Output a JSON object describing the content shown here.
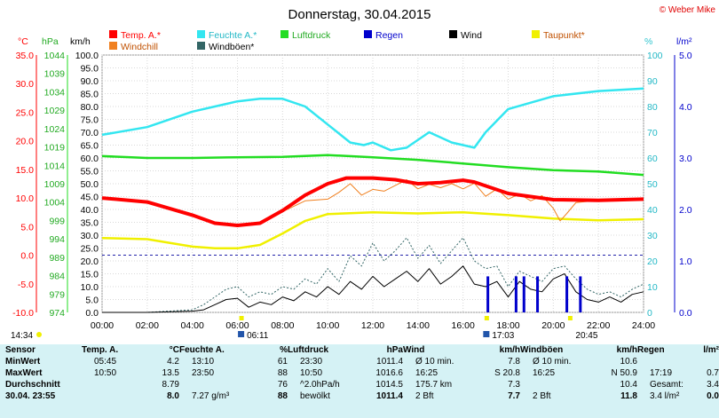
{
  "title": "Donnerstag, 30.04.2015",
  "copyright": "© Weber Mike",
  "legend": [
    {
      "label": "Temp. A.*",
      "color": "#ff0000"
    },
    {
      "label": "Feuchte A.*",
      "color": "#33e6f0"
    },
    {
      "label": "Luftdruck",
      "color": "#22dd22"
    },
    {
      "label": "Regen",
      "color": "#0000cc"
    },
    {
      "label": "Wind",
      "color": "#000000"
    },
    {
      "label": "Taupunkt*",
      "color": "#f0f000"
    },
    {
      "label": "Windchill",
      "color": "#f08020"
    },
    {
      "label": "Windböen*",
      "color": "#336666"
    }
  ],
  "axis_units": {
    "temp": "°C",
    "press": "hPa",
    "wind": "km/h",
    "hum": "%",
    "rain": "l/m²"
  },
  "events": {
    "sunrise_left": "14:34",
    "sunrise": "06:11",
    "moon": "17:03",
    "sunset": "20:45"
  },
  "chart_data": {
    "type": "line",
    "x_label_ticks": [
      "00:00",
      "02:00",
      "04:00",
      "06:00",
      "08:00",
      "10:00",
      "12:00",
      "14:00",
      "16:00",
      "18:00",
      "20:00",
      "22:00",
      "24:00"
    ],
    "temp_axis": {
      "unit": "°C",
      "range": [
        -10,
        35
      ],
      "ticks": [
        35,
        30,
        25,
        20,
        15,
        10,
        5,
        0,
        -5,
        -10
      ],
      "labels": [
        "35.0",
        "30.0",
        "25.0",
        "20.0",
        "15.0",
        "10.0",
        "5.0",
        "0.0",
        "-5.0",
        "-10.0"
      ]
    },
    "pressure_axis": {
      "unit": "hPa",
      "range": [
        974,
        1044
      ],
      "ticks": [
        1044,
        1039,
        1034,
        1029,
        1024,
        1019,
        1014,
        1009,
        1004,
        999,
        994,
        989,
        984,
        979,
        974
      ]
    },
    "wind_axis": {
      "unit": "km/h",
      "range": [
        0,
        100
      ],
      "labels": [
        "100.0",
        "95.0",
        "90.0",
        "85.0",
        "80.0",
        "75.0",
        "70.0",
        "65.0",
        "60.0",
        "55.0",
        "50.0",
        "45.0",
        "40.0",
        "35.0",
        "30.0",
        "25.0",
        "20.0",
        "15.0",
        "10.0",
        "5.0",
        "0.0"
      ]
    },
    "humidity_axis": {
      "unit": "%",
      "range": [
        0,
        100
      ],
      "ticks": [
        100,
        90,
        80,
        70,
        60,
        50,
        40,
        30,
        20,
        10,
        0
      ]
    },
    "rain_axis": {
      "unit": "l/m²",
      "range": [
        0,
        5
      ],
      "labels": [
        "5.0",
        "4.0",
        "3.0",
        "2.0",
        "1.0",
        "0.0"
      ]
    },
    "series": [
      {
        "name": "Temp. A.*",
        "axis": "temp",
        "x": [
          0,
          2,
          4,
          5,
          6,
          7,
          8,
          9,
          10,
          10.83,
          12,
          13,
          14,
          15,
          16,
          16.5,
          18,
          20,
          22,
          24
        ],
        "y": [
          10,
          9.3,
          7,
          5.6,
          5.2,
          5.6,
          7.8,
          10.5,
          12.5,
          13.5,
          13.5,
          13.2,
          12.5,
          12.7,
          13.1,
          12.8,
          10.8,
          9.7,
          9.6,
          9.8
        ]
      },
      {
        "name": "Windchill",
        "axis": "temp",
        "x": [
          0,
          2,
          4,
          5,
          6,
          7,
          8,
          9,
          10,
          10.5,
          11,
          11.5,
          12,
          12.5,
          13,
          13.5,
          14,
          14.5,
          15,
          15.5,
          16,
          16.5,
          17,
          17.5,
          18,
          18.5,
          19,
          19.5,
          20,
          20.3,
          20.6,
          21,
          22,
          24
        ],
        "y": [
          10,
          9.3,
          7,
          5.6,
          5.2,
          5.6,
          7.6,
          9.5,
          9.8,
          11,
          12.5,
          10.5,
          11.5,
          11.2,
          12.2,
          13.2,
          11.6,
          12.4,
          11.8,
          12.5,
          11.6,
          12.6,
          10.3,
          11.6,
          9.8,
          10.7,
          9.5,
          10.4,
          8.2,
          6,
          7.3,
          9.2,
          9.6,
          9.8
        ]
      },
      {
        "name": "Taupunkt*",
        "axis": "temp",
        "x": [
          0,
          2,
          4,
          5,
          6,
          7,
          8,
          9,
          10,
          12,
          14,
          16,
          18,
          20,
          22,
          24
        ],
        "y": [
          3,
          2.8,
          1.5,
          1.2,
          1.2,
          1.8,
          3.8,
          6,
          7.2,
          7.5,
          7.3,
          7.5,
          7,
          6.4,
          6.1,
          6.3
        ]
      },
      {
        "name": "Feuchte A.*",
        "axis": "humidity",
        "x": [
          0,
          2,
          4,
          5,
          6,
          7,
          8,
          9,
          10,
          11,
          11.6,
          12,
          12.8,
          13.5,
          14.5,
          15.5,
          16,
          16.5,
          17,
          18,
          20,
          22,
          24
        ],
        "y": [
          69,
          72,
          78,
          80,
          82,
          83,
          83,
          80,
          73,
          66,
          65,
          66,
          63,
          64,
          70,
          66,
          65,
          64,
          70,
          79,
          84,
          86,
          87
        ]
      },
      {
        "name": "Luftdruck",
        "axis": "pressure",
        "x": [
          0,
          2,
          4,
          6,
          8,
          10,
          12,
          14,
          16,
          18,
          20,
          22,
          24
        ],
        "y": [
          1016.5,
          1016,
          1016,
          1016.2,
          1016.3,
          1016.8,
          1016.2,
          1015.5,
          1014.5,
          1013.5,
          1012.7,
          1012.3,
          1011.4
        ]
      },
      {
        "name": "Wind",
        "axis": "wind",
        "x": [
          0,
          2,
          4,
          4.5,
          5,
          5.5,
          6,
          6.5,
          7,
          7.5,
          8,
          8.5,
          9,
          9.5,
          10,
          10.5,
          11,
          11.5,
          12,
          12.5,
          13,
          13.5,
          14,
          14.5,
          15,
          15.5,
          16,
          16.5,
          17,
          17.5,
          18,
          18.5,
          19,
          19.5,
          20,
          20.5,
          21,
          21.5,
          22,
          22.5,
          23,
          23.5,
          24
        ],
        "y": [
          0,
          0,
          0.5,
          1,
          3,
          5,
          5.5,
          2,
          4,
          3,
          6,
          4.5,
          8,
          6,
          10,
          7,
          12,
          9,
          14,
          10,
          13,
          16,
          12,
          17,
          11,
          14,
          18,
          11,
          10,
          12,
          6,
          12,
          9,
          8,
          13,
          15,
          8,
          5,
          4,
          6,
          4,
          7,
          8
        ]
      },
      {
        "name": "Windböen*",
        "axis": "wind",
        "x": [
          0,
          2,
          4,
          4.5,
          5,
          5.5,
          6,
          6.5,
          7,
          7.5,
          8,
          8.5,
          9,
          9.5,
          10,
          10.5,
          11,
          11.5,
          12,
          12.5,
          13,
          13.5,
          14,
          14.5,
          15,
          15.5,
          16,
          16.5,
          17,
          17.5,
          18,
          18.5,
          19,
          19.5,
          20,
          20.5,
          21,
          21.5,
          22,
          22.5,
          23,
          23.5,
          24
        ],
        "y": [
          0,
          0,
          1,
          3,
          6,
          9,
          10,
          6,
          8,
          7,
          10,
          9,
          13,
          11,
          17,
          12,
          22,
          18,
          27,
          20,
          24,
          29,
          21,
          26,
          19,
          24,
          29,
          20,
          17,
          18,
          10,
          16,
          14,
          12,
          17,
          18,
          13,
          9,
          7,
          8,
          6,
          9,
          11
        ]
      },
      {
        "name": "Regen",
        "axis": "rain",
        "type": "bar",
        "x": [
          17.1,
          18.35,
          18.7,
          19.3,
          20.6,
          21.2
        ],
        "y": [
          0.7,
          0.7,
          0.7,
          0.7,
          0.7,
          0.7
        ]
      }
    ]
  },
  "stats": {
    "header": [
      "Sensor",
      "Temp. A.",
      "°C",
      "Feuchte A.",
      "%",
      "Luftdruck",
      "hPa",
      "Wind",
      "km/h",
      "Windböen",
      "km/h",
      "Regen",
      "l/m²"
    ],
    "rows": [
      {
        "label": "MinWert",
        "cells": [
          "05:45",
          "4.2",
          "13:10",
          "61",
          "23:30",
          "1011.4",
          "Ø 10 min.",
          "7.8",
          "Ø 10 min.",
          "10.6",
          "",
          ""
        ]
      },
      {
        "label": "MaxWert",
        "cells": [
          "10:50",
          "13.5",
          "23:50",
          "88",
          "10:50",
          "1016.6",
          "16:25",
          "S 20.8",
          "16:25",
          "N 50.9",
          "17:19",
          "0.7"
        ]
      },
      {
        "label": "Durchschnitt",
        "cells": [
          "",
          "8.79",
          "",
          "76",
          "^2.0hPa/h",
          "1014.5",
          "175.7 km",
          "7.3",
          "",
          "10.4",
          "Gesamt:",
          "3.4"
        ]
      },
      {
        "label": "30.04. 23:55",
        "cells": [
          "",
          "8.0",
          "7.27 g/m³",
          "88",
          "bewölkt",
          "1011.4",
          "2 Bft",
          "7.7",
          "2 Bft",
          "11.8",
          "3.4 l/m²",
          "0.0"
        ]
      }
    ]
  }
}
